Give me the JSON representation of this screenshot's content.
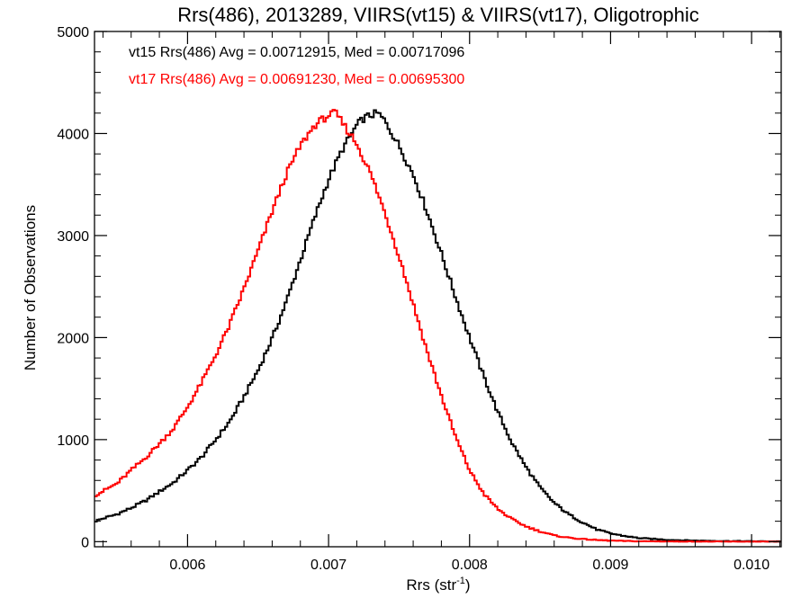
{
  "chart_data": {
    "type": "line",
    "step": true,
    "title": "Rrs(486), 2013289, VIIRS(vt15) & VIIRS(vt17), Oligotrophic",
    "xlabel_base": "Rrs (str",
    "xlabel_sup": "-1",
    "xlabel_close": ")",
    "ylabel": "Number of Observations",
    "xlim": [
      0.00534,
      0.01021
    ],
    "ylim": [
      -50,
      5000
    ],
    "x_ticks": [
      {
        "value": 0.006,
        "label": "0.006"
      },
      {
        "value": 0.007,
        "label": "0.007"
      },
      {
        "value": 0.008,
        "label": "0.008"
      },
      {
        "value": 0.009,
        "label": "0.009"
      },
      {
        "value": 0.01,
        "label": "0.010"
      }
    ],
    "y_ticks": [
      {
        "value": 0,
        "label": "0"
      },
      {
        "value": 1000,
        "label": "1000"
      },
      {
        "value": 2000,
        "label": "2000"
      },
      {
        "value": 3000,
        "label": "3000"
      },
      {
        "value": 4000,
        "label": "4000"
      },
      {
        "value": 5000,
        "label": "5000"
      }
    ],
    "annotations": [
      {
        "text": "vt15 Rrs(486) Avg = 0.00712915, Med = 0.00717096",
        "color": "#000000"
      },
      {
        "text": "vt17 Rrs(486) Avg = 0.00691230, Med = 0.00695300",
        "color": "#ff0000"
      }
    ],
    "series": [
      {
        "color": "#000000",
        "x": [
          0.00534,
          0.0055,
          0.0056,
          0.0057,
          0.0058,
          0.0059,
          0.006,
          0.0061,
          0.0062,
          0.0063,
          0.0064,
          0.0065,
          0.0066,
          0.0067,
          0.0068,
          0.0069,
          0.007,
          0.0071,
          0.0072,
          0.00725,
          0.0073,
          0.00735,
          0.0074,
          0.0075,
          0.0076,
          0.0077,
          0.0078,
          0.0079,
          0.008,
          0.0081,
          0.0082,
          0.0083,
          0.0084,
          0.0085,
          0.0086,
          0.0087,
          0.0088,
          0.0089,
          0.009,
          0.0091,
          0.0092,
          0.0094,
          0.0096,
          0.0098,
          0.01,
          0.01021
        ],
        "y": [
          200,
          270,
          330,
          400,
          490,
          580,
          700,
          830,
          1000,
          1180,
          1420,
          1680,
          1990,
          2350,
          2760,
          3170,
          3550,
          3850,
          4080,
          4150,
          4180,
          4200,
          4120,
          3880,
          3600,
          3230,
          2820,
          2400,
          2000,
          1620,
          1270,
          970,
          730,
          530,
          380,
          270,
          190,
          120,
          80,
          55,
          35,
          18,
          10,
          6,
          4,
          2
        ]
      },
      {
        "color": "#ff0000",
        "x": [
          0.00534,
          0.0055,
          0.0056,
          0.0057,
          0.0058,
          0.0059,
          0.006,
          0.0061,
          0.0062,
          0.0063,
          0.0064,
          0.0065,
          0.0066,
          0.0067,
          0.0068,
          0.0069,
          0.007,
          0.00705,
          0.0071,
          0.0072,
          0.0073,
          0.0074,
          0.0075,
          0.0076,
          0.0077,
          0.0078,
          0.0079,
          0.008,
          0.0081,
          0.0082,
          0.0083,
          0.0084,
          0.0085,
          0.0086,
          0.0087,
          0.0088,
          0.0089,
          0.009,
          0.0091,
          0.0092,
          0.0094,
          0.0096,
          0.0098,
          0.01,
          0.01021
        ],
        "y": [
          450,
          570,
          700,
          820,
          960,
          1110,
          1320,
          1560,
          1830,
          2130,
          2480,
          2850,
          3240,
          3600,
          3880,
          4080,
          4180,
          4200,
          4100,
          3900,
          3600,
          3220,
          2800,
          2330,
          1860,
          1430,
          1030,
          700,
          470,
          320,
          220,
          150,
          100,
          60,
          40,
          25,
          16,
          10,
          6,
          4,
          2,
          1,
          0,
          0,
          0
        ]
      }
    ]
  }
}
